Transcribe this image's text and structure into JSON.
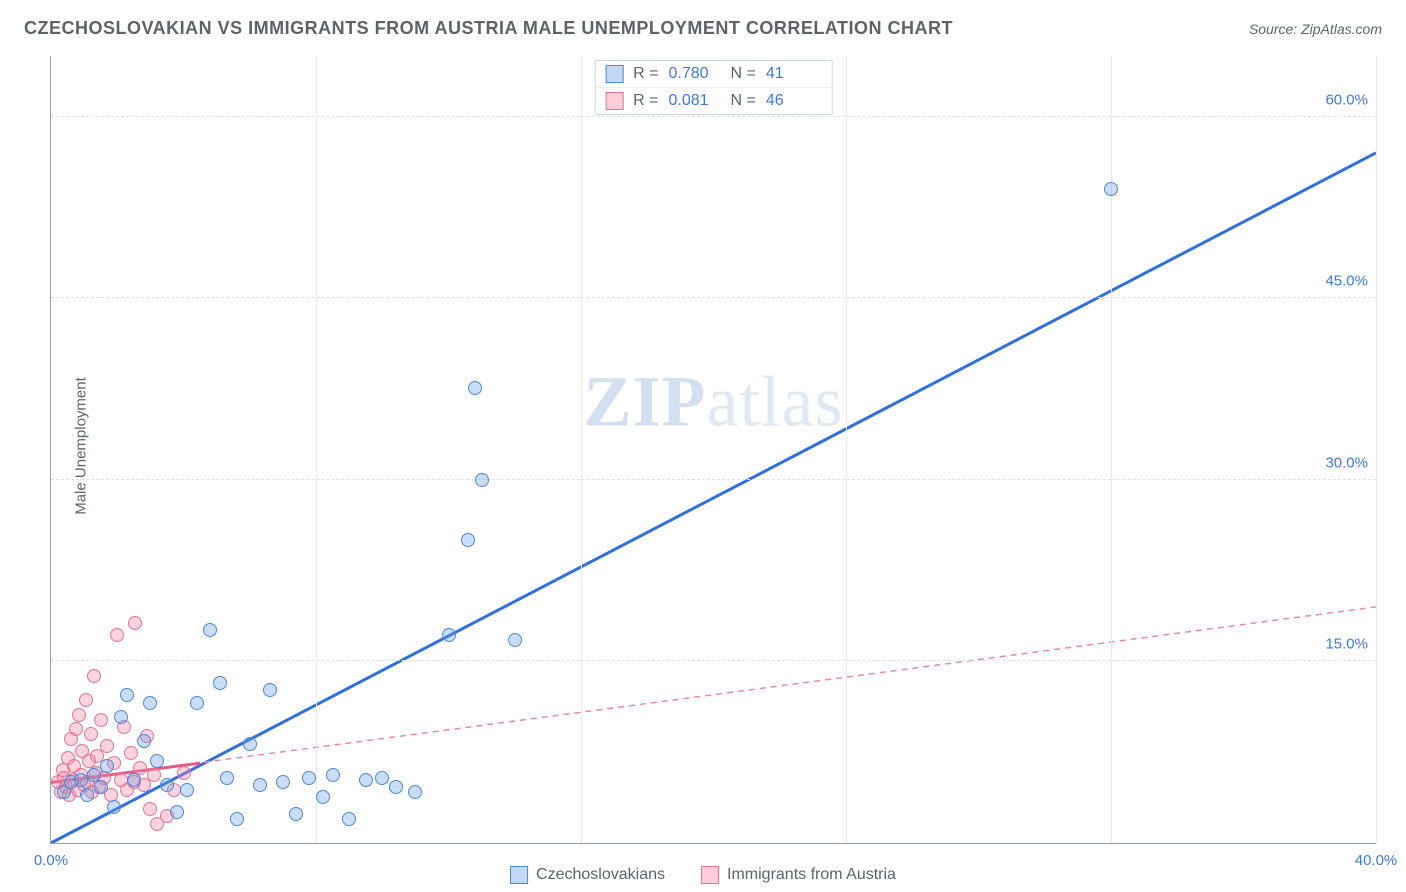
{
  "header": {
    "title": "CZECHOSLOVAKIAN VS IMMIGRANTS FROM AUSTRIA MALE UNEMPLOYMENT CORRELATION CHART",
    "source_prefix": "Source: ",
    "source": "ZipAtlas.com"
  },
  "ylabel": "Male Unemployment",
  "watermark": {
    "zip": "ZIP",
    "atlas": "atlas"
  },
  "chart": {
    "type": "scatter",
    "xlim": [
      0,
      40
    ],
    "ylim": [
      0,
      65
    ],
    "yticks": [
      {
        "value": 15,
        "label": "15.0%"
      },
      {
        "value": 30,
        "label": "30.0%"
      },
      {
        "value": 45,
        "label": "45.0%"
      },
      {
        "value": 60,
        "label": "60.0%"
      }
    ],
    "xticks_lines": [
      8,
      16,
      24,
      32,
      40
    ],
    "xticks_labels": [
      {
        "value": 0,
        "label": "0.0%"
      },
      {
        "value": 40,
        "label": "40.0%"
      }
    ],
    "series": [
      {
        "name": "Czechoslovakians",
        "color_fill": "rgba(100,160,230,0.35)",
        "color_stroke": "#4f86d9",
        "marker_class": "pt-blue",
        "trend": {
          "x1": 0,
          "y1": 0,
          "x2": 40,
          "y2": 57,
          "stroke": "#2f6fe0",
          "width": 3,
          "dash": ""
        },
        "stats": {
          "r": "0.780",
          "n": "41"
        },
        "points": [
          [
            0.4,
            4.2
          ],
          [
            0.6,
            5.0
          ],
          [
            0.9,
            5.2
          ],
          [
            1.1,
            4.0
          ],
          [
            1.3,
            5.6
          ],
          [
            1.5,
            4.6
          ],
          [
            1.7,
            6.4
          ],
          [
            1.9,
            3.0
          ],
          [
            2.1,
            10.4
          ],
          [
            2.3,
            12.2
          ],
          [
            2.5,
            5.2
          ],
          [
            2.8,
            8.4
          ],
          [
            3.0,
            11.6
          ],
          [
            3.2,
            6.8
          ],
          [
            3.5,
            4.8
          ],
          [
            3.8,
            2.6
          ],
          [
            4.1,
            4.4
          ],
          [
            4.4,
            11.6
          ],
          [
            4.8,
            17.6
          ],
          [
            5.1,
            13.2
          ],
          [
            5.3,
            5.4
          ],
          [
            5.6,
            2.0
          ],
          [
            6.0,
            8.2
          ],
          [
            6.3,
            4.8
          ],
          [
            6.6,
            12.6
          ],
          [
            7.0,
            5.0
          ],
          [
            7.4,
            2.4
          ],
          [
            7.8,
            5.4
          ],
          [
            8.2,
            3.8
          ],
          [
            8.5,
            5.6
          ],
          [
            9.0,
            2.0
          ],
          [
            9.5,
            5.2
          ],
          [
            10.0,
            5.4
          ],
          [
            10.4,
            4.6
          ],
          [
            11.0,
            4.2
          ],
          [
            12.0,
            17.2
          ],
          [
            12.6,
            25.0
          ],
          [
            12.8,
            37.6
          ],
          [
            13.0,
            30.0
          ],
          [
            14.0,
            16.8
          ],
          [
            32.0,
            54.0
          ]
        ]
      },
      {
        "name": "Immigrants from Austria",
        "color_fill": "rgba(245,130,160,0.35)",
        "color_stroke": "#e57399",
        "marker_class": "pt-pink",
        "trend": {
          "x1": 0,
          "y1": 5.0,
          "x2": 40,
          "y2": 19.5,
          "stroke": "#e88aa6",
          "width": 1.5,
          "dash": "6,5"
        },
        "trend_solid": {
          "x1": 0,
          "y1": 5.0,
          "x2": 4.5,
          "y2": 6.6,
          "stroke": "#e05c85",
          "width": 3
        },
        "stats": {
          "r": "0.081",
          "n": "46"
        },
        "points": [
          [
            0.2,
            5.0
          ],
          [
            0.3,
            4.2
          ],
          [
            0.35,
            6.0
          ],
          [
            0.4,
            5.4
          ],
          [
            0.45,
            4.6
          ],
          [
            0.5,
            7.0
          ],
          [
            0.55,
            4.0
          ],
          [
            0.6,
            8.6
          ],
          [
            0.65,
            5.2
          ],
          [
            0.7,
            6.4
          ],
          [
            0.75,
            9.4
          ],
          [
            0.8,
            4.4
          ],
          [
            0.85,
            10.6
          ],
          [
            0.9,
            5.6
          ],
          [
            0.95,
            7.6
          ],
          [
            1.0,
            4.8
          ],
          [
            1.05,
            11.8
          ],
          [
            1.1,
            5.0
          ],
          [
            1.15,
            6.8
          ],
          [
            1.2,
            9.0
          ],
          [
            1.25,
            4.2
          ],
          [
            1.3,
            13.8
          ],
          [
            1.35,
            5.8
          ],
          [
            1.4,
            7.2
          ],
          [
            1.45,
            4.6
          ],
          [
            1.5,
            10.2
          ],
          [
            1.6,
            5.4
          ],
          [
            1.7,
            8.0
          ],
          [
            1.8,
            4.0
          ],
          [
            1.9,
            6.6
          ],
          [
            2.0,
            17.2
          ],
          [
            2.1,
            5.2
          ],
          [
            2.2,
            9.6
          ],
          [
            2.3,
            4.4
          ],
          [
            2.4,
            7.4
          ],
          [
            2.5,
            5.0
          ],
          [
            2.55,
            18.2
          ],
          [
            2.7,
            6.2
          ],
          [
            2.8,
            4.8
          ],
          [
            2.9,
            8.8
          ],
          [
            3.0,
            2.8
          ],
          [
            3.1,
            5.6
          ],
          [
            3.2,
            1.6
          ],
          [
            3.5,
            2.2
          ],
          [
            3.7,
            4.4
          ],
          [
            4.0,
            5.8
          ]
        ]
      }
    ]
  },
  "stats_legend": {
    "r_label": "R =",
    "n_label": "N ="
  },
  "bottom_legend": {
    "items": [
      "Czechoslovakians",
      "Immigrants from Austria"
    ]
  }
}
